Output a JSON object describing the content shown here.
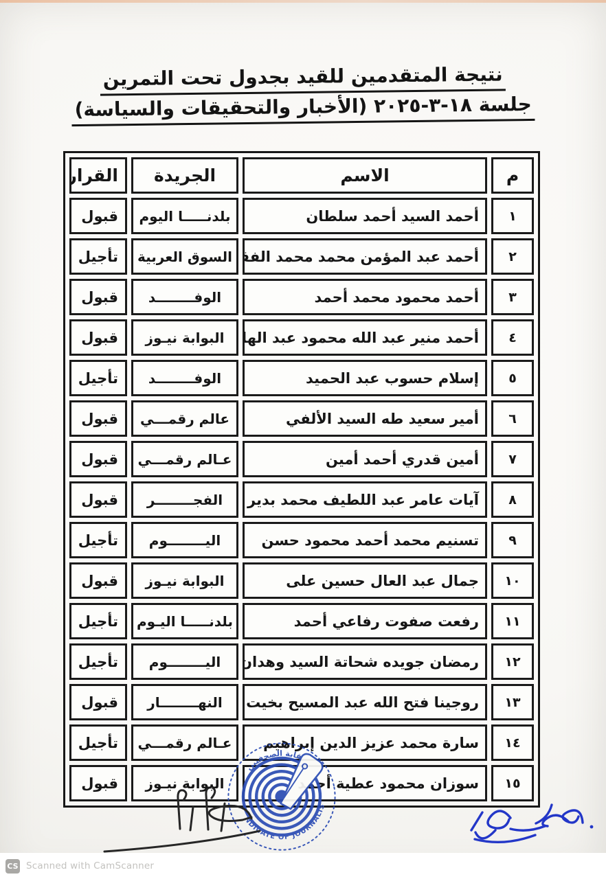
{
  "document": {
    "title_line1": "نتيجة المتقدمين  للقيد بجدول تحت التمرين",
    "title_line2": "جلسة ١٨-٣-٢٠٢٥ (الأخبار والتحقيقات والسياسة)"
  },
  "table": {
    "headers": {
      "num": "م",
      "name": "الاسم",
      "newspaper": "الجريدة",
      "decision": "القرار"
    },
    "rows": [
      {
        "num": "١",
        "name": "أحمد السيد أحمد سلطان",
        "newspaper": "بلدنـــــا اليوم",
        "decision": "قبول"
      },
      {
        "num": "٢",
        "name": "أحمد عبد المؤمن محمد محمد الفقي",
        "newspaper": "السوق العربية",
        "decision": "تأجيل"
      },
      {
        "num": "٣",
        "name": "أحمد محمود محمد أحمد",
        "newspaper": "الوفــــــــد",
        "decision": "قبول"
      },
      {
        "num": "٤",
        "name": "أحمد منير عبد الله محمود عبد الهادي",
        "newspaper": "البوابة نيـوز",
        "decision": "قبول"
      },
      {
        "num": "٥",
        "name": "إسلام حسوب عبد الحميد",
        "newspaper": "الوفــــــــد",
        "decision": "تأجيل"
      },
      {
        "num": "٦",
        "name": "أمير سعيد طه السيد الألفي",
        "newspaper": "عالم رقمـــي",
        "decision": "قبول"
      },
      {
        "num": "٧",
        "name": "أمين قدري أحمد أمين",
        "newspaper": "عـالم رقمـــي",
        "decision": "قبول"
      },
      {
        "num": "٨",
        "name": "آيات عامر عبد اللطيف محمد بدير",
        "newspaper": "الفجــــــــر",
        "decision": "قبول"
      },
      {
        "num": "٩",
        "name": "تسنيم محمد أحمد محمود حسن",
        "newspaper": "اليــــــــوم",
        "decision": "تأجيل"
      },
      {
        "num": "١٠",
        "name": "جمال عبد العال حسين على",
        "newspaper": "البوابة نيـوز",
        "decision": "قبول"
      },
      {
        "num": "١١",
        "name": "رفعت صفوت رفاعي أحمد",
        "newspaper": "بلدنـــــا اليـوم",
        "decision": "تأجيل"
      },
      {
        "num": "١٢",
        "name": "رمضان جويده شحاتة السيد وهدان",
        "newspaper": "اليــــــــوم",
        "decision": "تأجيل"
      },
      {
        "num": "١٣",
        "name": "روجينا فتح الله عبد المسيح بخيت",
        "newspaper": "النهــــــــار",
        "decision": "قبول"
      },
      {
        "num": "١٤",
        "name": "سارة محمد عزيز الدين إبراهيم",
        "newspaper": "عـالم رقمـــي",
        "decision": "تأجيل"
      },
      {
        "num": "١٥",
        "name": "سوزان محمود عطية أحمد",
        "newspaper": "البوابة نيـوز",
        "decision": "قبول"
      }
    ]
  },
  "stamp": {
    "arc_text_top": "نقابة الصحفيين",
    "arc_text_bottom": "SYNDICATE OF JOURNALISTS",
    "ink_color": "#2c4db4"
  },
  "signatures": {
    "left_ink": "#262626",
    "right_ink": "#2337c8"
  },
  "scanner_footer": {
    "badge": "CS",
    "label": "Scanned with CamScanner"
  }
}
